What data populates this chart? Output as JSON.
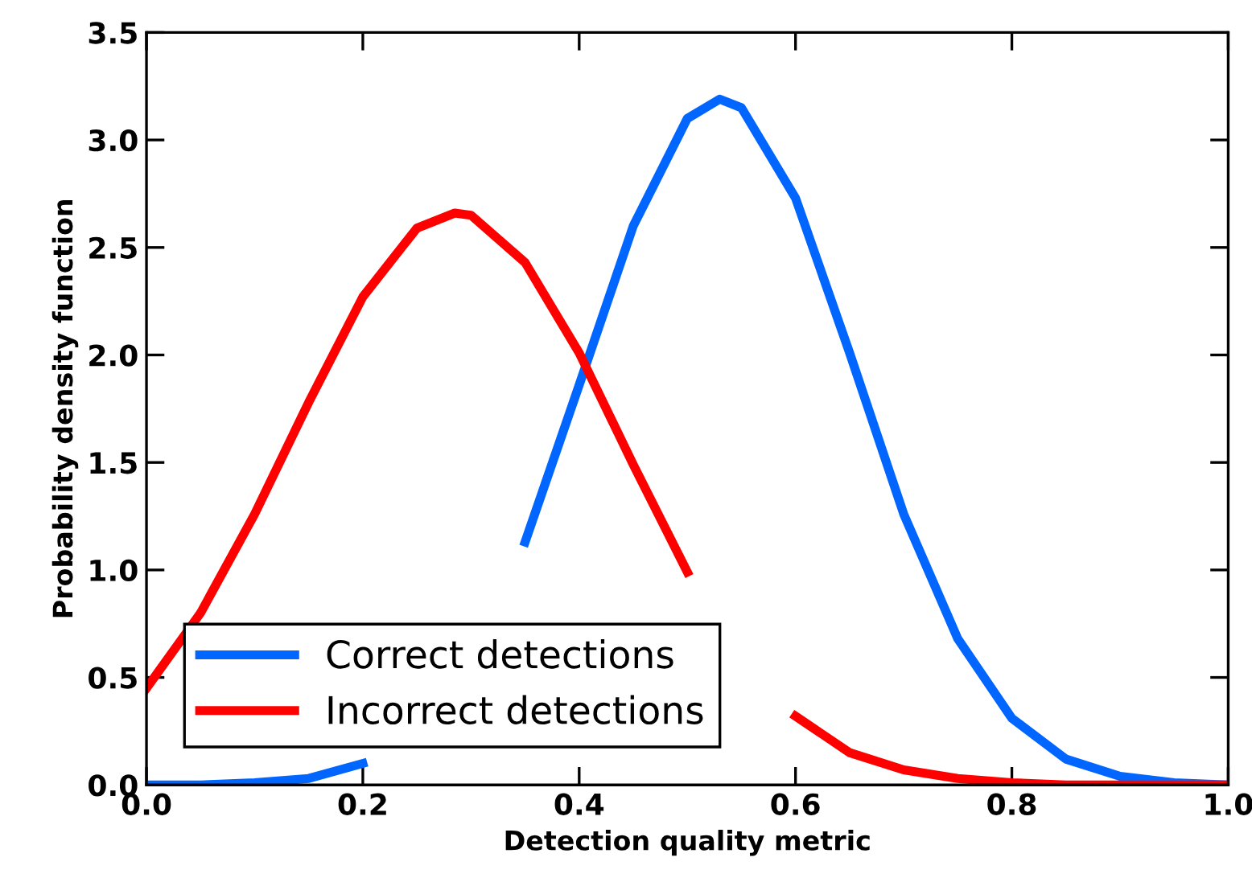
{
  "chart_data": {
    "type": "line",
    "xlabel": "Detection quality metric",
    "ylabel": "Probability density function",
    "xlim": [
      0.0,
      1.0
    ],
    "ylim": [
      0.0,
      3.5
    ],
    "xticks": [
      {
        "value": 0,
        "label": "0.0"
      },
      0.2,
      0.4,
      0.6,
      0.8,
      {
        "value": 1,
        "label": "1.0"
      }
    ],
    "yticks": [
      {
        "value": 0,
        "label": "0.0"
      },
      0.5,
      {
        "value": 1,
        "label": "1.0"
      },
      1.5,
      {
        "value": 2,
        "label": "2.0"
      },
      2.5,
      {
        "value": 3,
        "label": "3.0"
      },
      3.5
    ],
    "grid": false,
    "legend": "bottom left",
    "marker": "none",
    "line_style": "solid",
    "series": [
      {
        "name": "Correct detections",
        "color": "#0066ff",
        "x": [
          0,
          0.05,
          0.1,
          0.15,
          0.2,
          0.25,
          0.3,
          0.35,
          0.4,
          0.45,
          0.5,
          0.53,
          0.55,
          0.6,
          0.65,
          0.7,
          0.75,
          0.8,
          0.85,
          0.9,
          0.95,
          1.0
        ],
        "values": [
          0,
          0,
          0.01,
          0.03,
          0.1,
          null,
          null,
          1.13,
          1.86,
          2.6,
          3.1,
          3.19,
          3.15,
          2.73,
          2.01,
          1.26,
          0.68,
          0.31,
          0.12,
          0.04,
          0.01,
          0
        ]
      },
      {
        "name": "Incorrect detections",
        "color": "#ff0000",
        "x": [
          0,
          0.05,
          0.1,
          0.15,
          0.2,
          0.25,
          0.285,
          0.3,
          0.35,
          0.4,
          0.45,
          0.5,
          0.55,
          0.6,
          0.65,
          0.7,
          0.75,
          0.8,
          0.85,
          0.9,
          0.95,
          1.0
        ],
        "values": [
          0.45,
          0.8,
          1.26,
          1.78,
          2.27,
          2.59,
          2.66,
          2.65,
          2.43,
          2.01,
          1.49,
          0.99,
          null,
          0.32,
          0.15,
          0.07,
          0.03,
          0.01,
          0,
          0,
          0,
          0
        ]
      }
    ]
  }
}
